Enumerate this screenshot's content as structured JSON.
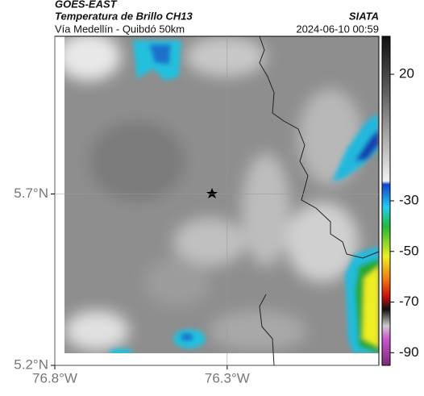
{
  "header": {
    "source": "GOES-EAST",
    "title": "Temperatura de Brillo CH13",
    "subtitle": "Vía Medellín - Quibdó 50km",
    "org": "SIATA",
    "datetime": "2024-06-10 00:59"
  },
  "map": {
    "xlim": [
      -76.8,
      -75.86
    ],
    "ylim": [
      5.2,
      6.16
    ],
    "xticks": [
      {
        "value": -76.8,
        "label": "76.8°W"
      },
      {
        "value": -76.3,
        "label": "76.3°W"
      }
    ],
    "yticks": [
      {
        "value": 5.2,
        "label": "5.2°N"
      },
      {
        "value": 5.7,
        "label": "5.7°N"
      }
    ],
    "grid": true
  },
  "colorbar": {
    "lim": [
      35,
      -95
    ],
    "ticks": [
      20,
      -30,
      -50,
      -70,
      -90
    ]
  }
}
